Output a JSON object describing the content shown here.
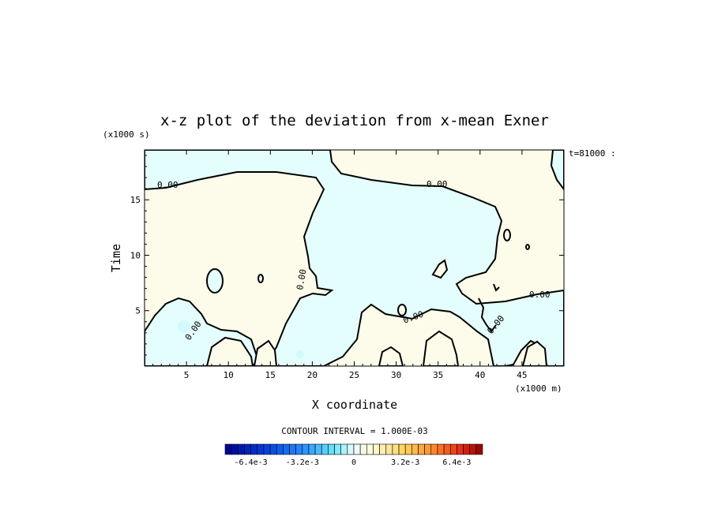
{
  "chart_data": {
    "type": "heatmap",
    "subtype": "contour",
    "title": "x-z plot of the deviation from x-mean Exner",
    "xlabel": "X coordinate",
    "ylabel": "Time",
    "x_unit": "(x1000 m)",
    "y_unit": "(x1000 s)",
    "time_stamp": "t=81000 :",
    "xlim": [
      0,
      50
    ],
    "ylim": [
      0,
      19.5
    ],
    "x_ticks": [
      5,
      10,
      15,
      20,
      25,
      30,
      35,
      40,
      45
    ],
    "y_ticks": [
      5,
      10,
      15
    ],
    "x_tick_labels": [
      "5",
      "10",
      "15",
      "20",
      "25",
      "30",
      "35",
      "40",
      "45"
    ],
    "y_tick_labels": [
      "5",
      "10",
      "15"
    ],
    "contour_label": "0.00",
    "contour_interval_text": "CONTOUR INTERVAL = 1.000E-03",
    "colorbar": {
      "min": -0.008,
      "max": 0.008,
      "interval": 0.0004,
      "tick_labels": [
        "-6.4e-3",
        "-3.2e-3",
        "0",
        "3.2e-3",
        "6.4e-3"
      ],
      "tick_values": [
        -0.0064,
        -0.0032,
        0,
        0.0032,
        0.0064
      ]
    },
    "regions": {
      "positive_color": "#fdfcea",
      "negative_color": "#e4fdfd",
      "negative_patch_color": "#d2fafc",
      "grid": false,
      "legend": "bottom"
    }
  }
}
